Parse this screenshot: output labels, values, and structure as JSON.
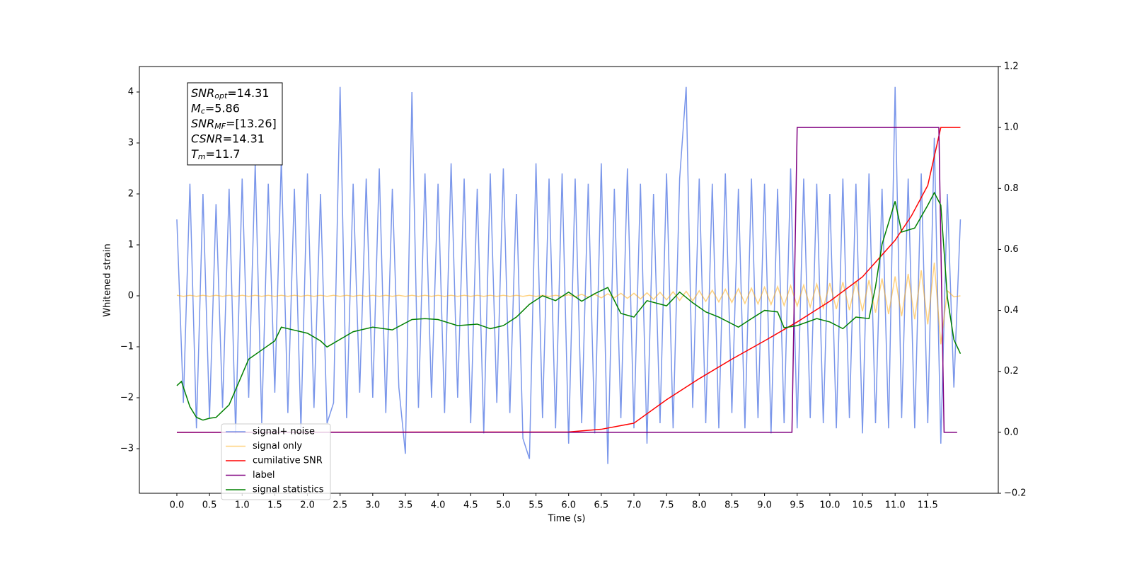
{
  "chart_data": {
    "type": "line",
    "xlabel": "Time (s)",
    "ylabel": "Whitened strain",
    "xlim": [
      -0.574,
      12.58
    ],
    "ylim": [
      -3.875,
      4.5
    ],
    "y2lim": [
      -0.2,
      1.2
    ],
    "xticks": [
      {
        "value": 0,
        "label": "0.0"
      },
      0.5,
      {
        "value": 1,
        "label": "1.0"
      },
      1.5,
      {
        "value": 2,
        "label": "2.0"
      },
      2.5,
      {
        "value": 3,
        "label": "3.0"
      },
      3.5,
      {
        "value": 4,
        "label": "4.0"
      },
      4.5,
      {
        "value": 5,
        "label": "5.0"
      },
      5.5,
      {
        "value": 6,
        "label": "6.0"
      },
      6.5,
      {
        "value": 7,
        "label": "7.0"
      },
      7.5,
      {
        "value": 8,
        "label": "8.0"
      },
      8.5,
      {
        "value": 9,
        "label": "9.0"
      },
      9.5,
      {
        "value": 10,
        "label": "10.0"
      },
      10.5,
      {
        "value": 11,
        "label": "11.0"
      },
      11.5
    ],
    "yticks": [
      {
        "value": -3,
        "label": "−3"
      },
      {
        "value": -2,
        "label": "−2"
      },
      {
        "value": -1,
        "label": "−1"
      },
      0,
      1,
      2,
      3,
      4
    ],
    "y2ticks": [
      {
        "value": -0.2,
        "label": "−0.2"
      },
      {
        "value": 0,
        "label": "0.0"
      },
      0.2,
      0.4,
      0.6,
      0.8,
      {
        "value": 1,
        "label": "1.0"
      },
      1.2
    ],
    "legend": "lower left",
    "annotations": [
      {
        "symbol": "SNR",
        "subscript": "opt",
        "text": "=14.31"
      },
      {
        "symbol": "M",
        "subscript": "c",
        "text": "=5.86"
      },
      {
        "symbol": "SNR",
        "subscript": "MF",
        "text": "=[13.26]"
      },
      {
        "symbol": "CSNR",
        "subscript": "",
        "text": "=14.31"
      },
      {
        "symbol": "T",
        "subscript": "m",
        "text": "=11.7"
      }
    ],
    "series": [
      {
        "name": "signal+ noise",
        "color": "#4169e1",
        "alpha": 0.7,
        "x": [
          0,
          0.1,
          0.2,
          0.3,
          0.4,
          0.5,
          0.6,
          0.7,
          0.8,
          0.9,
          1,
          1.1,
          1.2,
          1.3,
          1.4,
          1.5,
          1.6,
          1.7,
          1.8,
          1.9,
          2,
          2.1,
          2.2,
          2.3,
          2.4,
          2.5,
          2.6,
          2.7,
          2.8,
          2.9,
          3,
          3.1,
          3.2,
          3.3,
          3.4,
          3.5,
          3.6,
          3.7,
          3.8,
          3.9,
          4,
          4.1,
          4.2,
          4.3,
          4.4,
          4.5,
          4.6,
          4.7,
          4.8,
          4.9,
          5,
          5.1,
          5.2,
          5.3,
          5.4,
          5.5,
          5.6,
          5.7,
          5.8,
          5.9,
          6,
          6.1,
          6.2,
          6.3,
          6.4,
          6.5,
          6.6,
          6.7,
          6.8,
          6.9,
          7,
          7.1,
          7.2,
          7.3,
          7.4,
          7.5,
          7.6,
          7.7,
          7.8,
          7.9,
          8,
          8.1,
          8.2,
          8.3,
          8.4,
          8.5,
          8.6,
          8.7,
          8.8,
          8.9,
          9,
          9.1,
          9.2,
          9.3,
          9.4,
          9.5,
          9.6,
          9.7,
          9.8,
          9.9,
          10,
          10.1,
          10.2,
          10.3,
          10.4,
          10.5,
          10.6,
          10.7,
          10.8,
          10.9,
          11,
          11.1,
          11.2,
          11.3,
          11.4,
          11.5,
          11.6,
          11.7,
          11.8,
          11.9,
          12
        ],
        "values": [
          1.5,
          -2.1,
          2.2,
          -2.6,
          2.0,
          -2.4,
          1.8,
          -2.2,
          2.1,
          -2.7,
          2.3,
          -2.0,
          2.6,
          -2.5,
          2.2,
          -1.9,
          2.7,
          -2.3,
          2.1,
          -2.6,
          2.4,
          -2.2,
          2.0,
          -2.5,
          -2.1,
          4.1,
          -2.4,
          2.2,
          -1.9,
          2.3,
          -2.0,
          2.5,
          -2.3,
          2.1,
          -1.8,
          -3.1,
          4.0,
          -2.2,
          2.4,
          -2.0,
          2.2,
          -2.3,
          2.6,
          -2.0,
          2.3,
          -2.5,
          2.1,
          -2.7,
          2.4,
          -2.1,
          2.5,
          -2.3,
          2.0,
          -2.8,
          -3.2,
          2.6,
          -2.4,
          2.3,
          -2.6,
          2.4,
          -2.9,
          2.3,
          -2.5,
          2.2,
          -2.7,
          2.6,
          -3.3,
          2.1,
          -2.4,
          2.5,
          -2.6,
          2.2,
          -2.9,
          2.0,
          -2.5,
          2.4,
          -2.6,
          2.3,
          4.1,
          -2.2,
          2.3,
          -2.5,
          2.2,
          -2.6,
          2.4,
          -2.3,
          2.1,
          -2.6,
          2.3,
          -2.4,
          2.2,
          -2.7,
          2.1,
          -2.5,
          2.5,
          -2.6,
          2.3,
          -2.4,
          2.2,
          -2.5,
          2.0,
          -2.6,
          2.3,
          -2.4,
          2.2,
          -2.7,
          2.4,
          -2.5,
          2.1,
          -2.6,
          4.1,
          -2.4,
          2.3,
          -2.6,
          2.4,
          -2.5,
          3.1,
          -2.9,
          2.0,
          -1.8,
          1.5
        ]
      },
      {
        "name": "signal only",
        "color": "#ffa500",
        "alpha": 0.5,
        "x": [
          0,
          0.1,
          0.2,
          0.3,
          0.4,
          0.5,
          0.6,
          0.7,
          0.8,
          0.9,
          1,
          1.1,
          1.2,
          1.3,
          1.4,
          1.5,
          1.6,
          1.7,
          1.8,
          1.9,
          2,
          2.1,
          2.2,
          2.3,
          2.4,
          2.5,
          2.6,
          2.7,
          2.8,
          2.9,
          3,
          3.1,
          3.2,
          3.3,
          3.4,
          3.5,
          3.6,
          3.7,
          3.8,
          3.9,
          4,
          4.1,
          4.2,
          4.3,
          4.4,
          4.5,
          4.6,
          4.7,
          4.8,
          4.9,
          5,
          5.1,
          5.2,
          5.3,
          5.4,
          5.5,
          5.6,
          5.7,
          5.8,
          5.9,
          6,
          6.1,
          6.2,
          6.3,
          6.4,
          6.5,
          6.6,
          6.7,
          6.8,
          6.9,
          7,
          7.1,
          7.2,
          7.3,
          7.4,
          7.5,
          7.6,
          7.7,
          7.8,
          7.9,
          8,
          8.1,
          8.2,
          8.3,
          8.4,
          8.5,
          8.6,
          8.7,
          8.8,
          8.9,
          9,
          9.1,
          9.2,
          9.3,
          9.4,
          9.5,
          9.6,
          9.7,
          9.8,
          9.9,
          10,
          10.1,
          10.2,
          10.3,
          10.4,
          10.5,
          10.6,
          10.7,
          10.8,
          10.9,
          11,
          11.1,
          11.2,
          11.3,
          11.4,
          11.5,
          11.6,
          11.7,
          11.8,
          11.9,
          12
        ],
        "values": [
          0.01,
          -0.01,
          0.01,
          -0.01,
          0.01,
          -0.01,
          0.01,
          -0.01,
          0.01,
          -0.01,
          0.01,
          -0.01,
          0.01,
          -0.01,
          0.01,
          -0.01,
          0.01,
          -0.01,
          0.01,
          -0.01,
          0.01,
          -0.01,
          0.01,
          -0.01,
          0.01,
          -0.01,
          0.01,
          -0.01,
          0.01,
          -0.01,
          0.01,
          -0.01,
          0.01,
          -0.01,
          0.01,
          -0.01,
          0.01,
          -0.01,
          0.01,
          -0.01,
          0.01,
          -0.01,
          0.01,
          -0.01,
          0.01,
          -0.01,
          0.01,
          -0.01,
          0.01,
          -0.01,
          0.01,
          -0.01,
          0.01,
          -0.01,
          0.01,
          -0.01,
          0.01,
          -0.01,
          0.01,
          -0.01,
          0.02,
          -0.02,
          0.03,
          -0.03,
          0.03,
          -0.04,
          0.04,
          -0.04,
          0.05,
          -0.05,
          0.05,
          -0.06,
          0.06,
          -0.07,
          0.07,
          -0.08,
          0.08,
          -0.09,
          0.09,
          -0.1,
          0.1,
          -0.11,
          0.11,
          -0.12,
          0.13,
          -0.13,
          0.14,
          -0.15,
          0.15,
          -0.16,
          0.17,
          -0.17,
          0.18,
          -0.19,
          0.2,
          -0.2,
          0.21,
          -0.22,
          0.23,
          -0.24,
          0.25,
          -0.26,
          0.27,
          -0.28,
          0.29,
          -0.3,
          0.31,
          -0.33,
          0.34,
          -0.36,
          0.38,
          -0.4,
          0.43,
          -0.46,
          0.5,
          -0.56,
          0.65,
          -0.95,
          0.1,
          -0.02,
          0
        ]
      },
      {
        "name": "cumilative SNR",
        "color": "red",
        "axis": "y2",
        "x": [
          0,
          6,
          6.5,
          7,
          7.5,
          8,
          8.5,
          9,
          9.5,
          10,
          10.5,
          11,
          11.25,
          11.5,
          11.7,
          12
        ],
        "values": [
          0,
          0.001,
          0.01,
          0.03,
          0.107,
          0.176,
          0.24,
          0.3,
          0.362,
          0.43,
          0.51,
          0.63,
          0.71,
          0.81,
          1,
          1
        ]
      },
      {
        "name": "label",
        "color": "purple",
        "axis": "y2",
        "x": [
          0,
          9.42,
          9.5,
          11.67,
          11.75,
          11.95
        ],
        "values": [
          0,
          0,
          1,
          1,
          0,
          0
        ]
      },
      {
        "name": "signal statistics",
        "color": "green",
        "axis": "y2",
        "x": [
          0,
          0.07,
          0.2,
          0.3,
          0.4,
          0.5,
          0.6,
          0.8,
          1,
          1.1,
          1.3,
          1.5,
          1.6,
          1.8,
          2,
          2.2,
          2.3,
          2.5,
          2.7,
          3,
          3.3,
          3.6,
          3.8,
          4,
          4.3,
          4.6,
          4.8,
          5,
          5.2,
          5.4,
          5.6,
          5.8,
          6,
          6.2,
          6.4,
          6.6,
          6.8,
          7,
          7.2,
          7.5,
          7.7,
          7.9,
          8.1,
          8.3,
          8.6,
          8.8,
          9,
          9.2,
          9.3,
          9.5,
          9.8,
          10,
          10.2,
          10.4,
          10.6,
          10.7,
          10.8,
          11,
          11.1,
          11.3,
          11.5,
          11.6,
          11.7,
          11.8,
          11.9,
          12
        ],
        "values": [
          0.153,
          0.167,
          0.084,
          0.049,
          0.04,
          0.046,
          0.049,
          0.09,
          0.19,
          0.24,
          0.27,
          0.3,
          0.345,
          0.335,
          0.325,
          0.3,
          0.28,
          0.305,
          0.33,
          0.345,
          0.336,
          0.37,
          0.373,
          0.37,
          0.35,
          0.355,
          0.34,
          0.35,
          0.378,
          0.42,
          0.448,
          0.432,
          0.46,
          0.43,
          0.455,
          0.475,
          0.39,
          0.378,
          0.432,
          0.415,
          0.46,
          0.425,
          0.395,
          0.378,
          0.345,
          0.373,
          0.4,
          0.395,
          0.343,
          0.35,
          0.373,
          0.362,
          0.34,
          0.378,
          0.373,
          0.478,
          0.617,
          0.758,
          0.657,
          0.67,
          0.745,
          0.786,
          0.745,
          0.443,
          0.304,
          0.258
        ]
      }
    ]
  }
}
